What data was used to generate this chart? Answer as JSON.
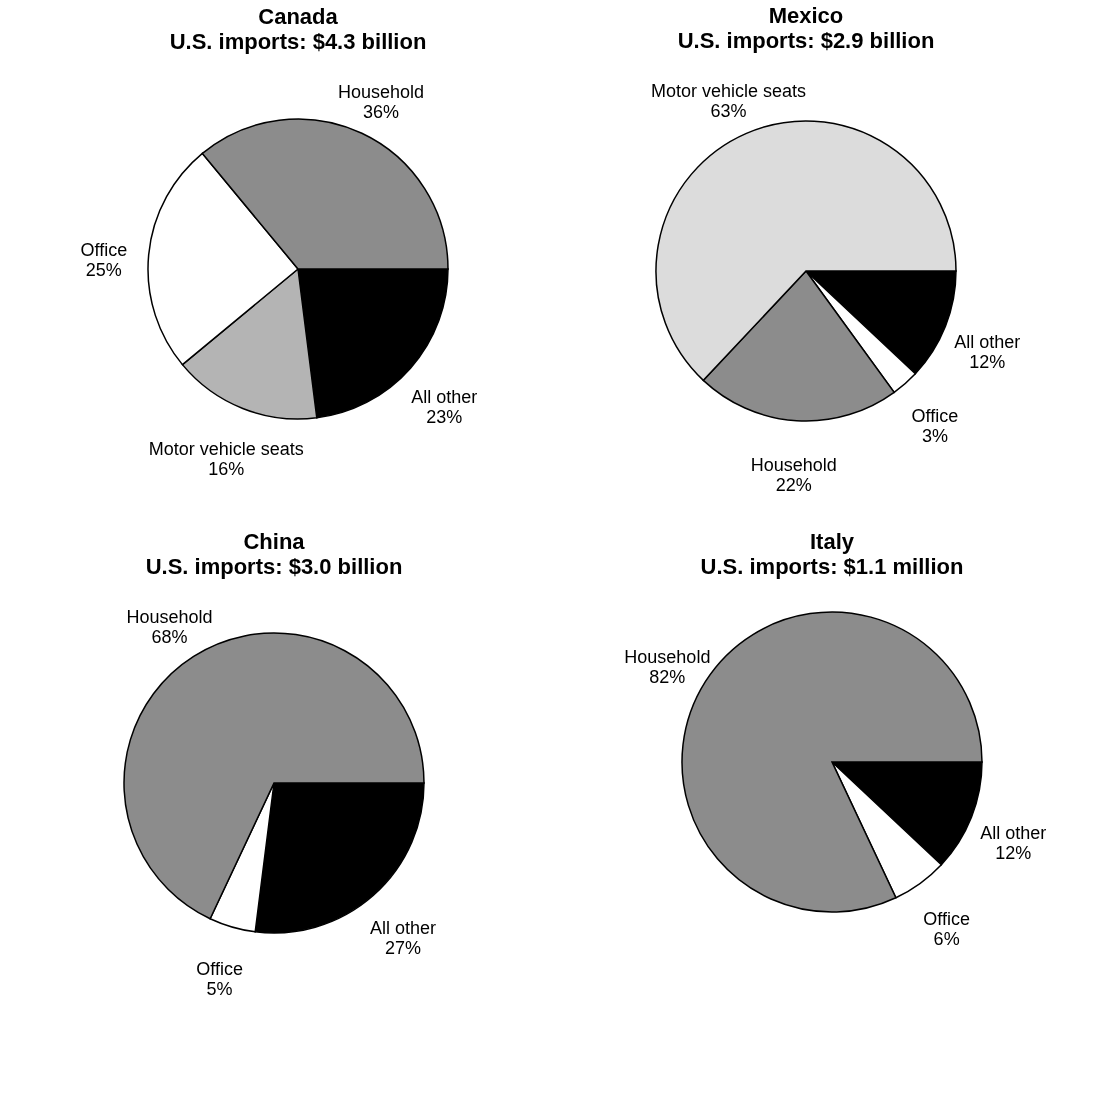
{
  "chart_data": [
    {
      "type": "pie",
      "title": "Canada",
      "subtitle": "U.S. imports:  $4.3 billion",
      "categories": [
        "All other",
        "Motor vehicle seats",
        "Office",
        "Household"
      ],
      "values": [
        23,
        16,
        25,
        36
      ],
      "value_labels": [
        "23%",
        "16%",
        "25%",
        "36%"
      ],
      "colors": [
        "#000000",
        "#b4b4b4",
        "#ffffff",
        "#8c8c8c"
      ]
    },
    {
      "type": "pie",
      "title": "Mexico",
      "subtitle": "U.S. imports:  $2.9 billion",
      "categories": [
        "All other",
        "Office",
        "Household",
        "Motor vehicle seats"
      ],
      "values": [
        12,
        3,
        22,
        63
      ],
      "value_labels": [
        "12%",
        "3%",
        "22%",
        "63%"
      ],
      "colors": [
        "#000000",
        "#ffffff",
        "#8c8c8c",
        "#dcdcdc"
      ]
    },
    {
      "type": "pie",
      "title": "China",
      "subtitle": "U.S. imports:  $3.0 billion",
      "categories": [
        "All other",
        "Office",
        "Household"
      ],
      "values": [
        27,
        5,
        68
      ],
      "value_labels": [
        "27%",
        "5%",
        "68%"
      ],
      "colors": [
        "#000000",
        "#ffffff",
        "#8c8c8c"
      ]
    },
    {
      "type": "pie",
      "title": "Italy",
      "subtitle": "U.S. imports:  $1.1 million",
      "categories": [
        "All other",
        "Office",
        "Household"
      ],
      "values": [
        12,
        6,
        82
      ],
      "value_labels": [
        "12%",
        "6%",
        "82%"
      ],
      "colors": [
        "#000000",
        "#ffffff",
        "#8c8c8c"
      ]
    }
  ]
}
